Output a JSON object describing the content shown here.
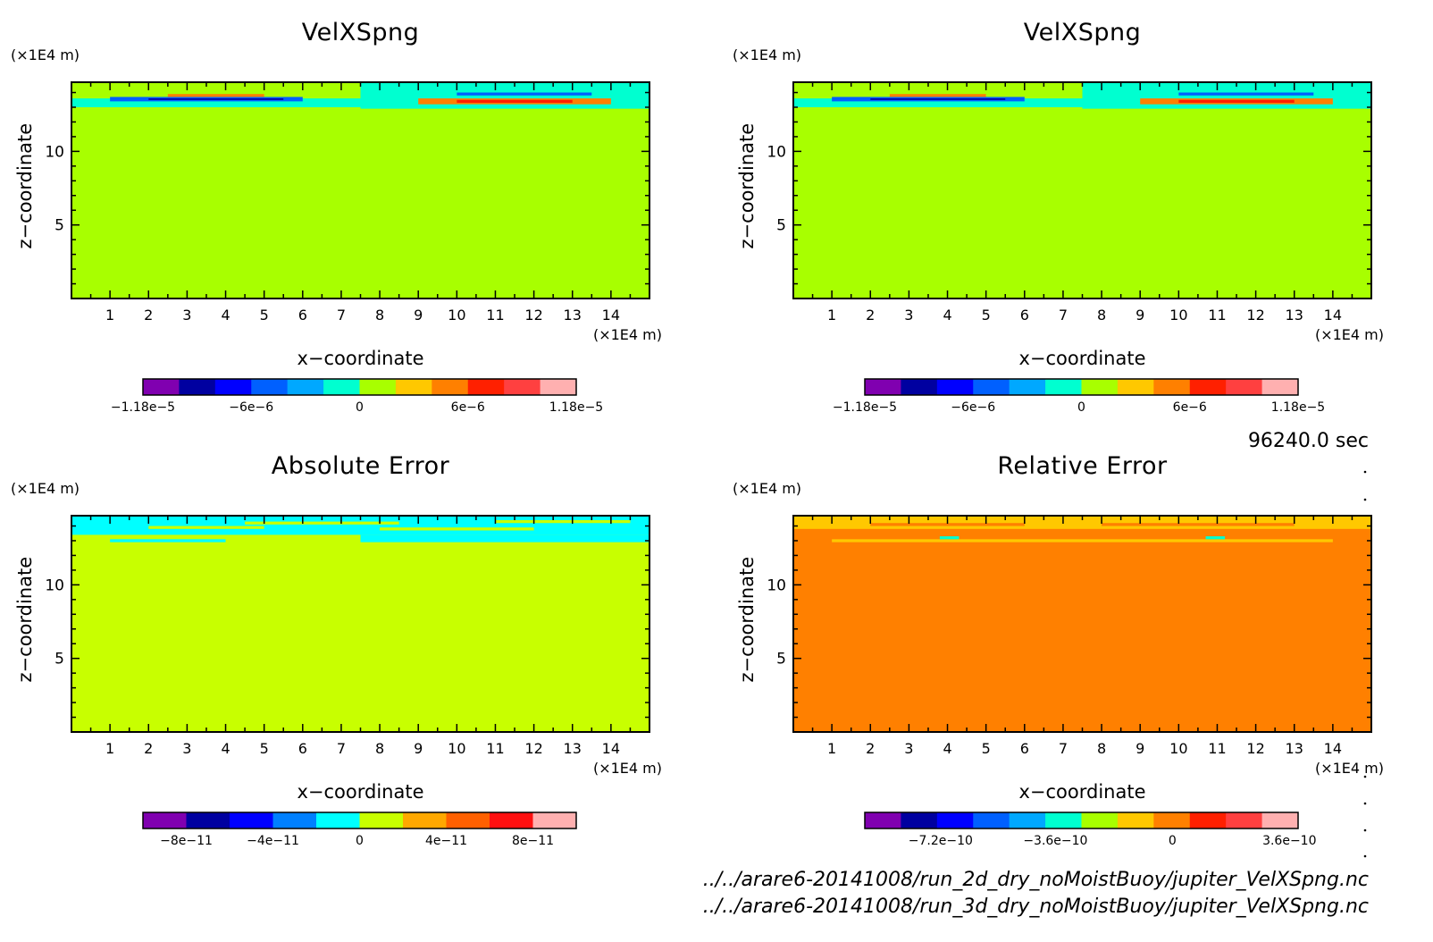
{
  "figure": {
    "time_label": "96240.0 sec",
    "file_lines": [
      "../../arare6-20141008/run_2d_dry_noMoistBuoy/jupiter_VelXSpng.nc",
      "../../arare6-20141008/run_3d_dry_noMoistBuoy/jupiter_VelXSpng.nc"
    ]
  },
  "colors": {
    "plot_frame": "#000000",
    "background": "#ffffff"
  },
  "chart_data": [
    {
      "type": "heatmap",
      "title": "VelXSpng",
      "xlabel": "x−coordinate",
      "ylabel": "z−coordinate",
      "x_unit": "(×1E4 m)",
      "y_unit": "(×1E4 m)",
      "xlim": [
        0,
        15
      ],
      "ylim": [
        0,
        14.7
      ],
      "x_ticks": [
        "1",
        "2",
        "3",
        "4",
        "5",
        "6",
        "7",
        "8",
        "9",
        "10",
        "11",
        "12",
        "13",
        "14"
      ],
      "y_ticks": [
        "5",
        "10"
      ],
      "colorbar": {
        "colors": [
          "#8000b0",
          "#0000a0",
          "#0000ff",
          "#0060ff",
          "#00a8ff",
          "#00ffd0",
          "#a8ff00",
          "#ffc800",
          "#ff8000",
          "#ff2000",
          "#ff4040",
          "#ffb0b0"
        ],
        "tick_labels": [
          "−1.18e−5",
          "−6e−6",
          "0",
          "6e−6",
          "1.18e−5"
        ],
        "tick_fraction": [
          0.0,
          0.25,
          0.5,
          0.75,
          1.0
        ]
      },
      "field": {
        "background": "#a8ff00",
        "bands": [
          {
            "x": [
              0,
              7.5
            ],
            "z": [
              13.0,
              13.6
            ],
            "color": "#00ffd0"
          },
          {
            "x": [
              7.5,
              15
            ],
            "z": [
              12.9,
              14.7
            ],
            "color": "#00ffd0"
          },
          {
            "x": [
              1.0,
              6.0
            ],
            "z": [
              13.4,
              13.7
            ],
            "color": "#0060ff"
          },
          {
            "x": [
              2.0,
              5.5
            ],
            "z": [
              13.5,
              13.6
            ],
            "color": "#0000a0"
          },
          {
            "x": [
              2.5,
              5.0
            ],
            "z": [
              13.7,
              13.9
            ],
            "color": "#ff8000"
          },
          {
            "x": [
              9.0,
              14.0
            ],
            "z": [
              13.2,
              13.6
            ],
            "color": "#ff8000"
          },
          {
            "x": [
              10.0,
              13.0
            ],
            "z": [
              13.3,
              13.5
            ],
            "color": "#ff2000"
          },
          {
            "x": [
              10.0,
              13.5
            ],
            "z": [
              13.8,
              14.0
            ],
            "color": "#0060ff"
          }
        ]
      }
    },
    {
      "type": "heatmap",
      "title": "VelXSpng",
      "xlabel": "x−coordinate",
      "ylabel": "z−coordinate",
      "x_unit": "(×1E4 m)",
      "y_unit": "(×1E4 m)",
      "xlim": [
        0,
        15
      ],
      "ylim": [
        0,
        14.7
      ],
      "x_ticks": [
        "1",
        "2",
        "3",
        "4",
        "5",
        "6",
        "7",
        "8",
        "9",
        "10",
        "11",
        "12",
        "13",
        "14"
      ],
      "y_ticks": [
        "5",
        "10"
      ],
      "colorbar": {
        "colors": [
          "#8000b0",
          "#0000a0",
          "#0000ff",
          "#0060ff",
          "#00a8ff",
          "#00ffd0",
          "#a8ff00",
          "#ffc800",
          "#ff8000",
          "#ff2000",
          "#ff4040",
          "#ffb0b0"
        ],
        "tick_labels": [
          "−1.18e−5",
          "−6e−6",
          "0",
          "6e−6",
          "1.18e−5"
        ],
        "tick_fraction": [
          0.0,
          0.25,
          0.5,
          0.75,
          1.0
        ]
      },
      "field": {
        "background": "#a8ff00",
        "bands": [
          {
            "x": [
              0,
              7.5
            ],
            "z": [
              13.0,
              13.6
            ],
            "color": "#00ffd0"
          },
          {
            "x": [
              7.5,
              15
            ],
            "z": [
              12.9,
              14.7
            ],
            "color": "#00ffd0"
          },
          {
            "x": [
              1.0,
              6.0
            ],
            "z": [
              13.4,
              13.7
            ],
            "color": "#0060ff"
          },
          {
            "x": [
              2.0,
              5.5
            ],
            "z": [
              13.5,
              13.6
            ],
            "color": "#0000a0"
          },
          {
            "x": [
              2.5,
              5.0
            ],
            "z": [
              13.7,
              13.9
            ],
            "color": "#ff8000"
          },
          {
            "x": [
              9.0,
              14.0
            ],
            "z": [
              13.2,
              13.6
            ],
            "color": "#ff8000"
          },
          {
            "x": [
              10.0,
              13.0
            ],
            "z": [
              13.3,
              13.5
            ],
            "color": "#ff2000"
          },
          {
            "x": [
              10.0,
              13.5
            ],
            "z": [
              13.8,
              14.0
            ],
            "color": "#0060ff"
          }
        ]
      }
    },
    {
      "type": "heatmap",
      "title": "Absolute Error",
      "xlabel": "x−coordinate",
      "ylabel": "z−coordinate",
      "x_unit": "(×1E4 m)",
      "y_unit": "(×1E4 m)",
      "xlim": [
        0,
        15
      ],
      "ylim": [
        0,
        14.7
      ],
      "x_ticks": [
        "1",
        "2",
        "3",
        "4",
        "5",
        "6",
        "7",
        "8",
        "9",
        "10",
        "11",
        "12",
        "13",
        "14"
      ],
      "y_ticks": [
        "5",
        "10"
      ],
      "colorbar": {
        "colors": [
          "#8000b0",
          "#0000a0",
          "#0000ff",
          "#0080ff",
          "#00ffff",
          "#c8ff00",
          "#ffa800",
          "#ff6000",
          "#ff1010",
          "#ffb0b0"
        ],
        "tick_labels": [
          "−8e−11",
          "−4e−11",
          "0",
          "4e−11",
          "8e−11"
        ],
        "tick_fraction": [
          0.1,
          0.3,
          0.5,
          0.7,
          0.9
        ]
      },
      "field": {
        "background": "#c8ff00",
        "bands": [
          {
            "x": [
              0,
              15
            ],
            "z": [
              13.4,
              14.7
            ],
            "color": "#00ffff"
          },
          {
            "x": [
              1.0,
              4.0
            ],
            "z": [
              12.9,
              13.1
            ],
            "color": "#00ffff"
          },
          {
            "x": [
              7.5,
              15
            ],
            "z": [
              12.9,
              13.4
            ],
            "color": "#00ffff"
          },
          {
            "x": [
              2.0,
              5.0
            ],
            "z": [
              13.8,
              14.0
            ],
            "color": "#c8ff00"
          },
          {
            "x": [
              4.5,
              8.5
            ],
            "z": [
              14.1,
              14.3
            ],
            "color": "#c8ff00"
          },
          {
            "x": [
              8.0,
              12.0
            ],
            "z": [
              13.7,
              13.9
            ],
            "color": "#c8ff00"
          },
          {
            "x": [
              11.0,
              14.5
            ],
            "z": [
              14.2,
              14.4
            ],
            "color": "#c8ff00"
          }
        ]
      }
    },
    {
      "type": "heatmap",
      "title": "Relative Error",
      "xlabel": "x−coordinate",
      "ylabel": "z−coordinate",
      "x_unit": "(×1E4 m)",
      "y_unit": "(×1E4 m)",
      "xlim": [
        0,
        15
      ],
      "ylim": [
        0,
        14.7
      ],
      "x_ticks": [
        "1",
        "2",
        "3",
        "4",
        "5",
        "6",
        "7",
        "8",
        "9",
        "10",
        "11",
        "12",
        "13",
        "14"
      ],
      "y_ticks": [
        "5",
        "10"
      ],
      "colorbar": {
        "colors": [
          "#8000b0",
          "#0000a0",
          "#0000ff",
          "#0060ff",
          "#00a8ff",
          "#00ffd0",
          "#a8ff00",
          "#ffc800",
          "#ff8000",
          "#ff2000",
          "#ff4040",
          "#ffb0b0"
        ],
        "tick_labels": [
          "−7.2e−10",
          "−3.6e−10",
          "0",
          "3.6e−10"
        ],
        "tick_fraction": [
          0.175,
          0.44,
          0.71,
          0.98
        ]
      },
      "field": {
        "background": "#ff8000",
        "bands": [
          {
            "x": [
              0,
              15
            ],
            "z": [
              13.8,
              14.7
            ],
            "color": "#ffc800"
          },
          {
            "x": [
              1.0,
              14.0
            ],
            "z": [
              12.9,
              13.1
            ],
            "color": "#ffc800"
          },
          {
            "x": [
              2.0,
              6.0
            ],
            "z": [
              14.0,
              14.2
            ],
            "color": "#ff8000"
          },
          {
            "x": [
              8.0,
              13.0
            ],
            "z": [
              14.0,
              14.2
            ],
            "color": "#ff8000"
          },
          {
            "x": [
              3.8,
              4.3
            ],
            "z": [
              13.1,
              13.3
            ],
            "color": "#00ffd0"
          },
          {
            "x": [
              10.7,
              11.2
            ],
            "z": [
              13.1,
              13.3
            ],
            "color": "#00ffd0"
          }
        ]
      }
    }
  ]
}
